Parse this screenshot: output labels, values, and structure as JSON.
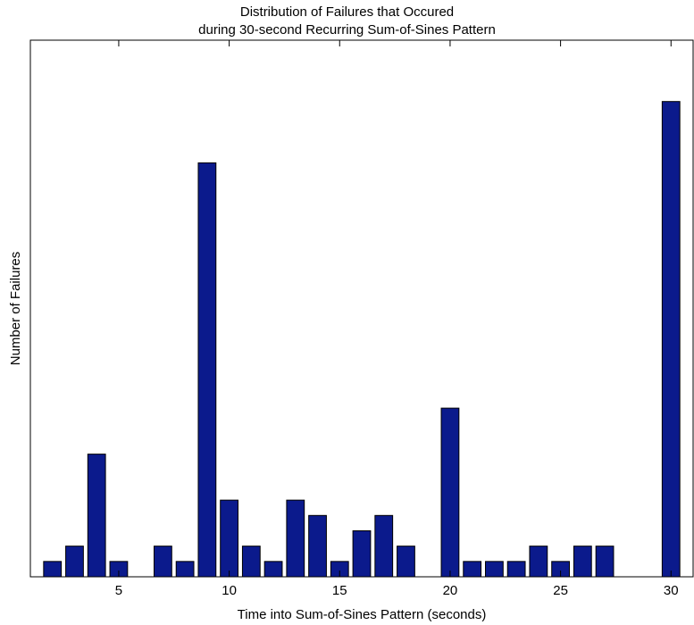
{
  "chart_data": {
    "type": "bar",
    "title_lines": [
      "Distribution of Failures that Occured",
      "during 30-second Recurring Sum-of-Sines Pattern"
    ],
    "xlabel": "Time into Sum-of-Sines Pattern (seconds)",
    "ylabel": "Number of Failures",
    "x": [
      2,
      3,
      4,
      5,
      7,
      8,
      9,
      10,
      11,
      12,
      13,
      14,
      15,
      16,
      17,
      18,
      20,
      21,
      22,
      23,
      24,
      25,
      26,
      27,
      30
    ],
    "values": [
      1,
      2,
      8,
      1,
      2,
      1,
      27,
      5,
      2,
      1,
      5,
      4,
      1,
      3,
      4,
      2,
      11,
      1,
      1,
      1,
      2,
      1,
      2,
      2,
      31
    ],
    "xlim": [
      1,
      31
    ],
    "ylim": [
      0,
      35
    ],
    "xticks": [
      5,
      10,
      15,
      20,
      25,
      30
    ],
    "yticks_labeled": false,
    "grid": false,
    "bar_color": "#0b1a8c"
  }
}
